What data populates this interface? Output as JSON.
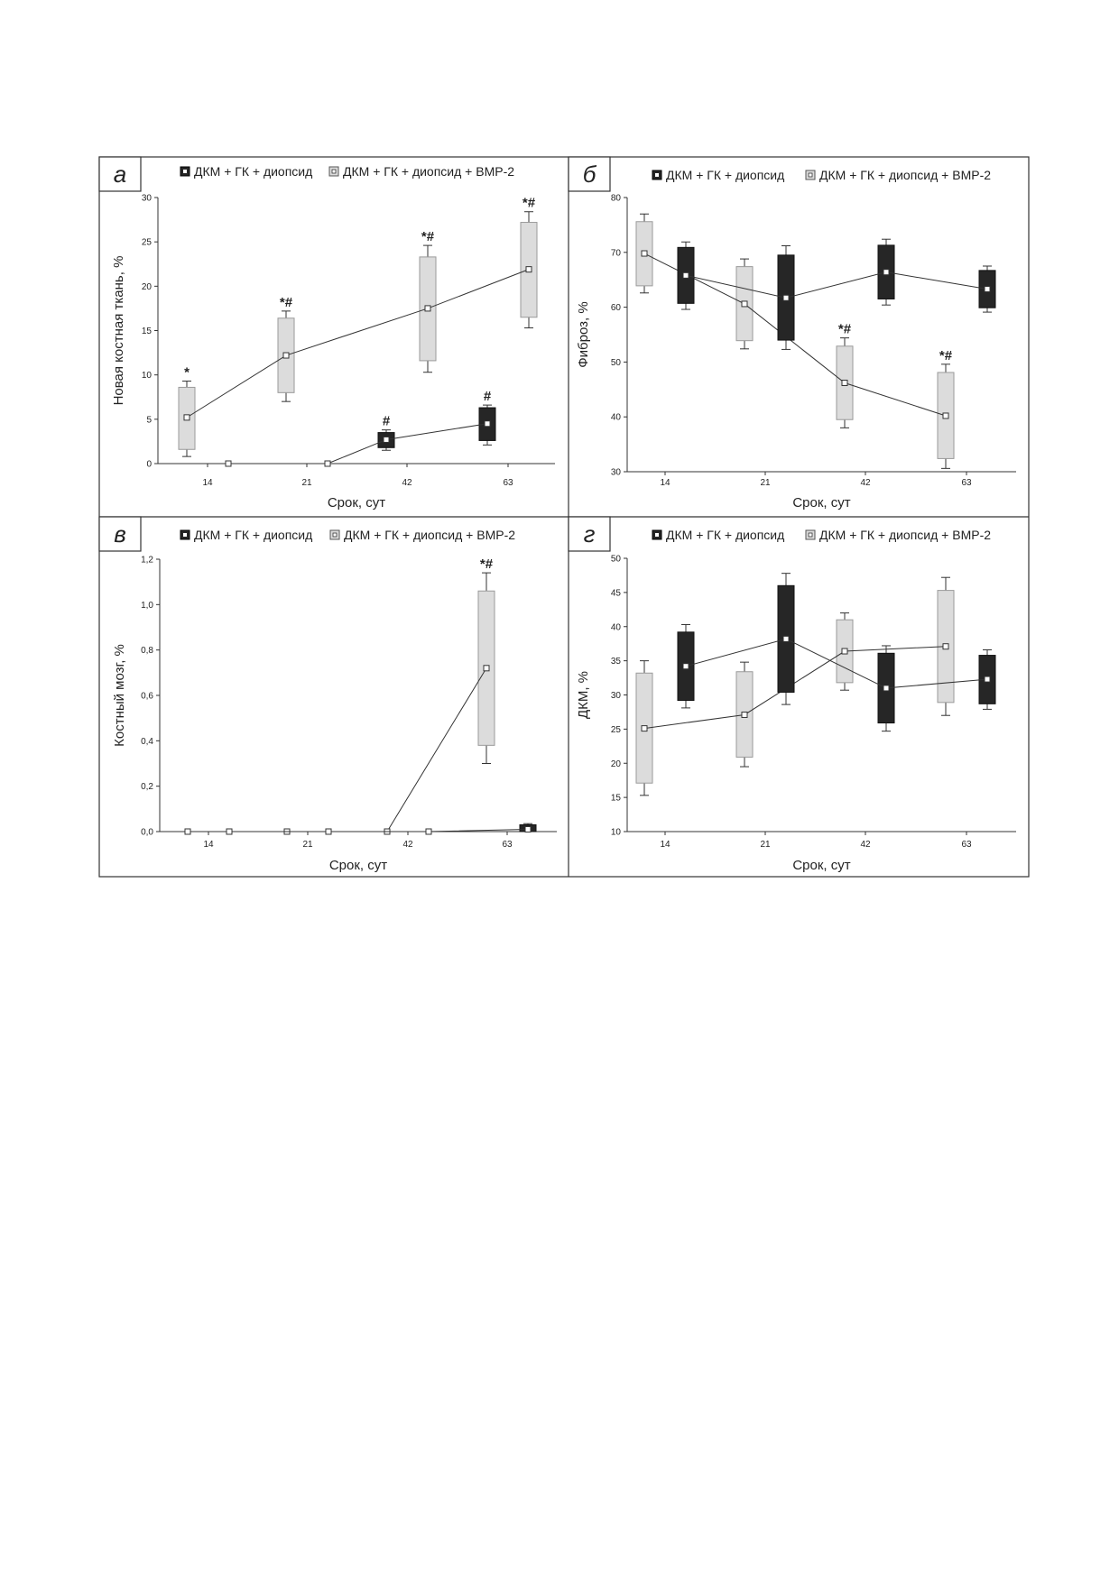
{
  "colors": {
    "light": "#dcdcdc",
    "dark": "#262626",
    "line": "#333333"
  },
  "legend": {
    "dark_label": "ДКМ + ГК + диопсид",
    "light_label": "ДКМ + ГК + диопсид + BMP-2"
  },
  "chart_data": [
    {
      "type": "box",
      "panel": "а",
      "xlabel": "Срок, сут",
      "ylabel": "Новая костная ткань, %",
      "categories": [
        "14",
        "21",
        "42",
        "63"
      ],
      "ylim": [
        0,
        30
      ],
      "yticks": [
        "0",
        "5",
        "10",
        "15",
        "20",
        "25",
        "30"
      ],
      "series": [
        {
          "name": "ДКМ + ГК + диопсид + BMP-2",
          "style": "light",
          "boxes": [
            {
              "category": "14",
              "median": 5.2,
              "q1": 1.6,
              "q3": 8.6,
              "min": 0.8,
              "max": 9.3,
              "annotation": "*"
            },
            {
              "category": "21",
              "median": 12.2,
              "q1": 8.0,
              "q3": 16.4,
              "min": 7.0,
              "max": 17.2,
              "annotation": "*#"
            },
            {
              "category": "42",
              "median": 17.5,
              "q1": 11.6,
              "q3": 23.3,
              "min": 10.3,
              "max": 24.6,
              "annotation": "*#"
            },
            {
              "category": "63",
              "median": 21.9,
              "q1": 16.5,
              "q3": 27.2,
              "min": 15.3,
              "max": 28.4,
              "annotation": "*#"
            }
          ]
        },
        {
          "name": "ДКМ + ГК + диопсид",
          "style": "dark",
          "boxes": [
            {
              "category": "14",
              "median": 0,
              "q1": 0,
              "q3": 0,
              "min": 0,
              "max": 0,
              "annotation": ""
            },
            {
              "category": "21",
              "median": 0,
              "q1": 0,
              "q3": 0,
              "min": 0,
              "max": 0,
              "annotation": ""
            },
            {
              "category": "42",
              "median": 2.7,
              "q1": 1.8,
              "q3": 3.5,
              "min": 1.5,
              "max": 3.8,
              "annotation": "#"
            },
            {
              "category": "63",
              "median": 4.5,
              "q1": 2.6,
              "q3": 6.3,
              "min": 2.1,
              "max": 6.6,
              "annotation": "#"
            }
          ]
        }
      ]
    },
    {
      "type": "box",
      "panel": "б",
      "xlabel": "Срок, сут",
      "ylabel": "Фиброз, %",
      "categories": [
        "14",
        "21",
        "42",
        "63"
      ],
      "ylim": [
        30,
        80
      ],
      "yticks": [
        "30",
        "40",
        "50",
        "60",
        "70",
        "80"
      ],
      "series": [
        {
          "name": "ДКМ + ГК + диопсид + BMP-2",
          "style": "light",
          "boxes": [
            {
              "category": "14",
              "median": 69.8,
              "q1": 63.9,
              "q3": 75.6,
              "min": 62.6,
              "max": 77.0,
              "annotation": ""
            },
            {
              "category": "21",
              "median": 60.6,
              "q1": 53.9,
              "q3": 67.4,
              "min": 52.4,
              "max": 68.8,
              "annotation": ""
            },
            {
              "category": "42",
              "median": 46.2,
              "q1": 39.5,
              "q3": 52.9,
              "min": 38.0,
              "max": 54.4,
              "annotation": "*#"
            },
            {
              "category": "63",
              "median": 40.2,
              "q1": 32.4,
              "q3": 48.1,
              "min": 30.6,
              "max": 49.6,
              "annotation": "*#"
            }
          ]
        },
        {
          "name": "ДКМ + ГК + диопсид",
          "style": "dark",
          "boxes": [
            {
              "category": "14",
              "median": 65.8,
              "q1": 60.7,
              "q3": 70.9,
              "min": 59.6,
              "max": 71.9,
              "annotation": ""
            },
            {
              "category": "21",
              "median": 61.7,
              "q1": 54.0,
              "q3": 69.5,
              "min": 52.3,
              "max": 71.2,
              "annotation": ""
            },
            {
              "category": "42",
              "median": 66.4,
              "q1": 61.5,
              "q3": 71.3,
              "min": 60.4,
              "max": 72.4,
              "annotation": ""
            },
            {
              "category": "63",
              "median": 63.3,
              "q1": 59.9,
              "q3": 66.7,
              "min": 59.1,
              "max": 67.5,
              "annotation": ""
            }
          ]
        }
      ]
    },
    {
      "type": "box",
      "panel": "в",
      "xlabel": "Срок, сут",
      "ylabel": "Костный мозг, %",
      "categories": [
        "14",
        "21",
        "42",
        "63"
      ],
      "ylim": [
        0,
        1.2
      ],
      "yticks": [
        "0,0",
        "0,2",
        "0,4",
        "0,6",
        "0,8",
        "1,0",
        "1,2"
      ],
      "series": [
        {
          "name": "ДКМ + ГК + диопсид + BMP-2",
          "style": "light",
          "boxes": [
            {
              "category": "14",
              "median": 0,
              "q1": 0,
              "q3": 0,
              "min": 0,
              "max": 0,
              "annotation": ""
            },
            {
              "category": "21",
              "median": 0,
              "q1": 0,
              "q3": 0,
              "min": 0,
              "max": 0,
              "annotation": ""
            },
            {
              "category": "42",
              "median": 0,
              "q1": 0,
              "q3": 0,
              "min": 0,
              "max": 0,
              "annotation": ""
            },
            {
              "category": "63",
              "median": 0.72,
              "q1": 0.38,
              "q3": 1.06,
              "min": 0.3,
              "max": 1.14,
              "annotation": "*#"
            }
          ]
        },
        {
          "name": "ДКМ + ГК + диопсид",
          "style": "dark",
          "boxes": [
            {
              "category": "14",
              "median": 0,
              "q1": 0,
              "q3": 0,
              "min": 0,
              "max": 0,
              "annotation": ""
            },
            {
              "category": "21",
              "median": 0,
              "q1": 0,
              "q3": 0,
              "min": 0,
              "max": 0,
              "annotation": ""
            },
            {
              "category": "42",
              "median": 0,
              "q1": 0,
              "q3": 0,
              "min": 0,
              "max": 0,
              "annotation": ""
            },
            {
              "category": "63",
              "median": 0.01,
              "q1": 0.0,
              "q3": 0.03,
              "min": 0.0,
              "max": 0.035,
              "annotation": ""
            }
          ]
        }
      ]
    },
    {
      "type": "box",
      "panel": "г",
      "xlabel": "Срок, сут",
      "ylabel": "ДКМ, %",
      "categories": [
        "14",
        "21",
        "42",
        "63"
      ],
      "ylim": [
        10,
        50
      ],
      "yticks": [
        "10",
        "15",
        "20",
        "25",
        "30",
        "35",
        "40",
        "45",
        "50"
      ],
      "series": [
        {
          "name": "ДКМ + ГК + диопсид + BMP-2",
          "style": "light",
          "boxes": [
            {
              "category": "14",
              "median": 25.1,
              "q1": 17.1,
              "q3": 33.2,
              "min": 15.3,
              "max": 35.0,
              "annotation": ""
            },
            {
              "category": "21",
              "median": 27.1,
              "q1": 20.9,
              "q3": 33.4,
              "min": 19.5,
              "max": 34.8,
              "annotation": ""
            },
            {
              "category": "42",
              "median": 36.4,
              "q1": 31.8,
              "q3": 41.0,
              "min": 30.7,
              "max": 42.0,
              "annotation": ""
            },
            {
              "category": "63",
              "median": 37.1,
              "q1": 28.9,
              "q3": 45.3,
              "min": 27.0,
              "max": 47.2,
              "annotation": ""
            }
          ]
        },
        {
          "name": "ДКМ + ГК + диопсид",
          "style": "dark",
          "boxes": [
            {
              "category": "14",
              "median": 34.2,
              "q1": 29.2,
              "q3": 39.2,
              "min": 28.1,
              "max": 40.3,
              "annotation": ""
            },
            {
              "category": "21",
              "median": 38.2,
              "q1": 30.4,
              "q3": 46.0,
              "min": 28.6,
              "max": 47.8,
              "annotation": ""
            },
            {
              "category": "42",
              "median": 31.0,
              "q1": 25.9,
              "q3": 36.1,
              "min": 24.7,
              "max": 37.2,
              "annotation": ""
            },
            {
              "category": "63",
              "median": 32.3,
              "q1": 28.7,
              "q3": 35.8,
              "min": 27.9,
              "max": 36.6,
              "annotation": ""
            }
          ]
        }
      ]
    }
  ]
}
